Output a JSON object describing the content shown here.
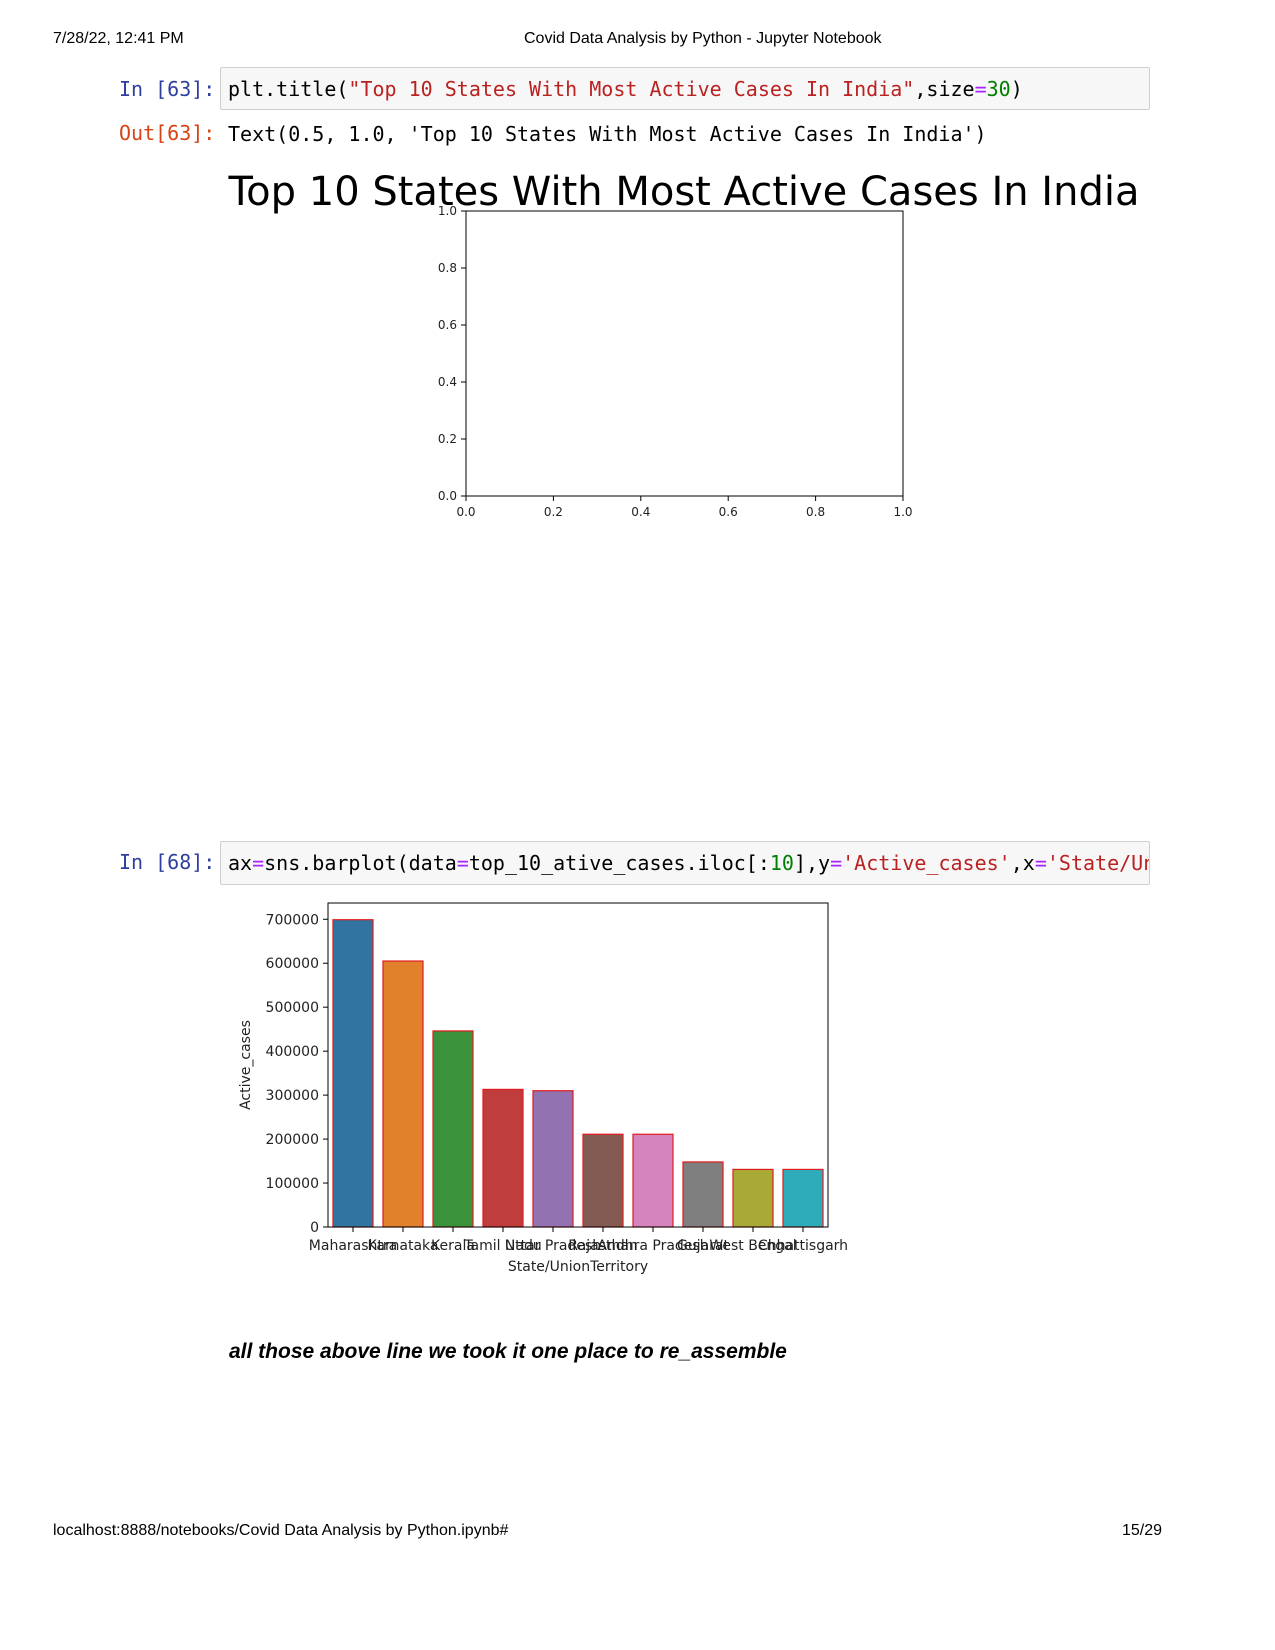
{
  "header": {
    "datetime": "7/28/22, 12:41 PM",
    "title": "Covid Data Analysis by Python - Jupyter Notebook"
  },
  "footer": {
    "url": "localhost:8888/notebooks/Covid Data Analysis by Python.ipynb#",
    "page": "15/29"
  },
  "cell1": {
    "prompt": "In [63]:",
    "code": {
      "p1": "plt.title(",
      "p2": "\"Top 10 States With Most Active Cases In India\"",
      "p3": ",size",
      "p4": "=",
      "p5": "30",
      "p6": ")"
    },
    "out_prompt": "Out[63]:",
    "output": "Text(0.5, 1.0, 'Top 10 States With Most Active Cases In India')"
  },
  "chart1": {
    "chart_data": {
      "type": "scatter",
      "title": "Top 10 States With Most Active Cases In India",
      "x": [],
      "y": [],
      "xlim": [
        0,
        1
      ],
      "ylim": [
        0,
        1
      ],
      "xticks": [
        "0.0",
        "0.2",
        "0.4",
        "0.6",
        "0.8",
        "1.0"
      ],
      "yticks": [
        "0.0",
        "0.2",
        "0.4",
        "0.6",
        "0.8",
        "1.0"
      ]
    }
  },
  "cell2": {
    "prompt": "In [68]:",
    "code": {
      "p1": "ax",
      "p2": "=",
      "p3": "sns.barplot(data",
      "p4": "=",
      "p5": "top_10_ative_cases.iloc[:",
      "p6": "10",
      "p7": "],y",
      "p8": "=",
      "p9": "'Active_cases'",
      "p10": ",x",
      "p11": "=",
      "p12": "'State/UnionTerritory'"
    }
  },
  "chart2": {
    "chart_data": {
      "type": "bar",
      "categories": [
        "Maharashtra",
        "Karnataka",
        "Kerala",
        "Tamil Nadu",
        "Uttar Pradesh",
        "Rajasthan",
        "Andhra Pradesh",
        "Gujarat",
        "West Bengal",
        "Chhattisgarh"
      ],
      "values": [
        699000,
        605000,
        446000,
        313000,
        310000,
        211000,
        211000,
        148000,
        131000,
        131000
      ],
      "colors": [
        "#3274a1",
        "#e1812c",
        "#3a923a",
        "#c03d3e",
        "#9372b2",
        "#845b53",
        "#d684bd",
        "#7f7f7f",
        "#a9aa35",
        "#2eabb8"
      ],
      "edge_color": "#e31a1c",
      "xlabel": "State/UnionTerritory",
      "ylabel": "Active_cases",
      "ylim": [
        0,
        737000
      ],
      "yticks": [
        "0",
        "100000",
        "200000",
        "300000",
        "400000",
        "500000",
        "600000",
        "700000"
      ],
      "ytick_values": [
        0,
        100000,
        200000,
        300000,
        400000,
        500000,
        600000,
        700000
      ]
    }
  },
  "markdown": {
    "text": "all those above line we took it one place to re_assemble"
  }
}
